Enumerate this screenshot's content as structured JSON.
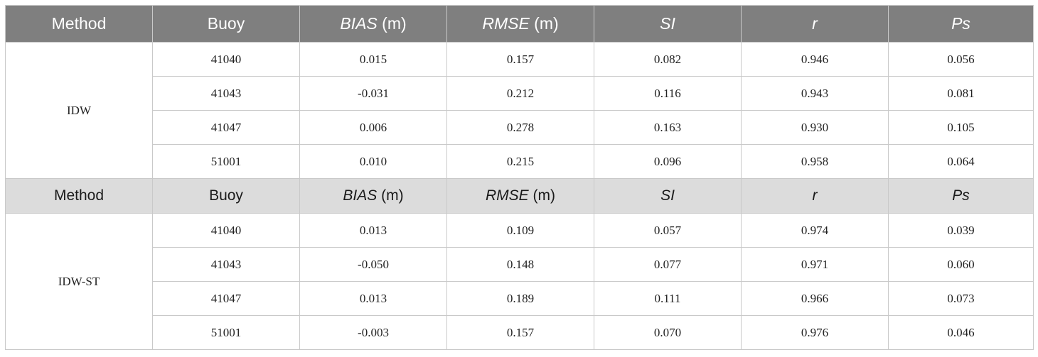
{
  "table": {
    "header": {
      "method": "Method",
      "buoy": "Buoy",
      "bias": "BIAS",
      "bias_unit": " (m)",
      "rmse": "RMSE",
      "rmse_unit": " (m)",
      "si": "SI",
      "r": "r",
      "ps": "Ps"
    },
    "groups": [
      {
        "method": "IDW",
        "rows": [
          [
            "41040",
            "0.015",
            "0.157",
            "0.082",
            "0.946",
            "0.056"
          ],
          [
            "41043",
            "-0.031",
            "0.212",
            "0.116",
            "0.943",
            "0.081"
          ],
          [
            "41047",
            "0.006",
            "0.278",
            "0.163",
            "0.930",
            "0.105"
          ],
          [
            "51001",
            "0.010",
            "0.215",
            "0.096",
            "0.958",
            "0.064"
          ]
        ]
      },
      {
        "method": "IDW-ST",
        "rows": [
          [
            "41040",
            "0.013",
            "0.109",
            "0.057",
            "0.974",
            "0.039"
          ],
          [
            "41043",
            "-0.050",
            "0.148",
            "0.077",
            "0.971",
            "0.060"
          ],
          [
            "41047",
            "0.013",
            "0.189",
            "0.111",
            "0.966",
            "0.073"
          ],
          [
            "51001",
            "-0.003",
            "0.157",
            "0.070",
            "0.976",
            "0.046"
          ]
        ]
      }
    ]
  },
  "colors": {
    "header_bg": "#7f7f7f",
    "subheader_bg": "#dcdcdc",
    "border": "#c9c9c9"
  }
}
